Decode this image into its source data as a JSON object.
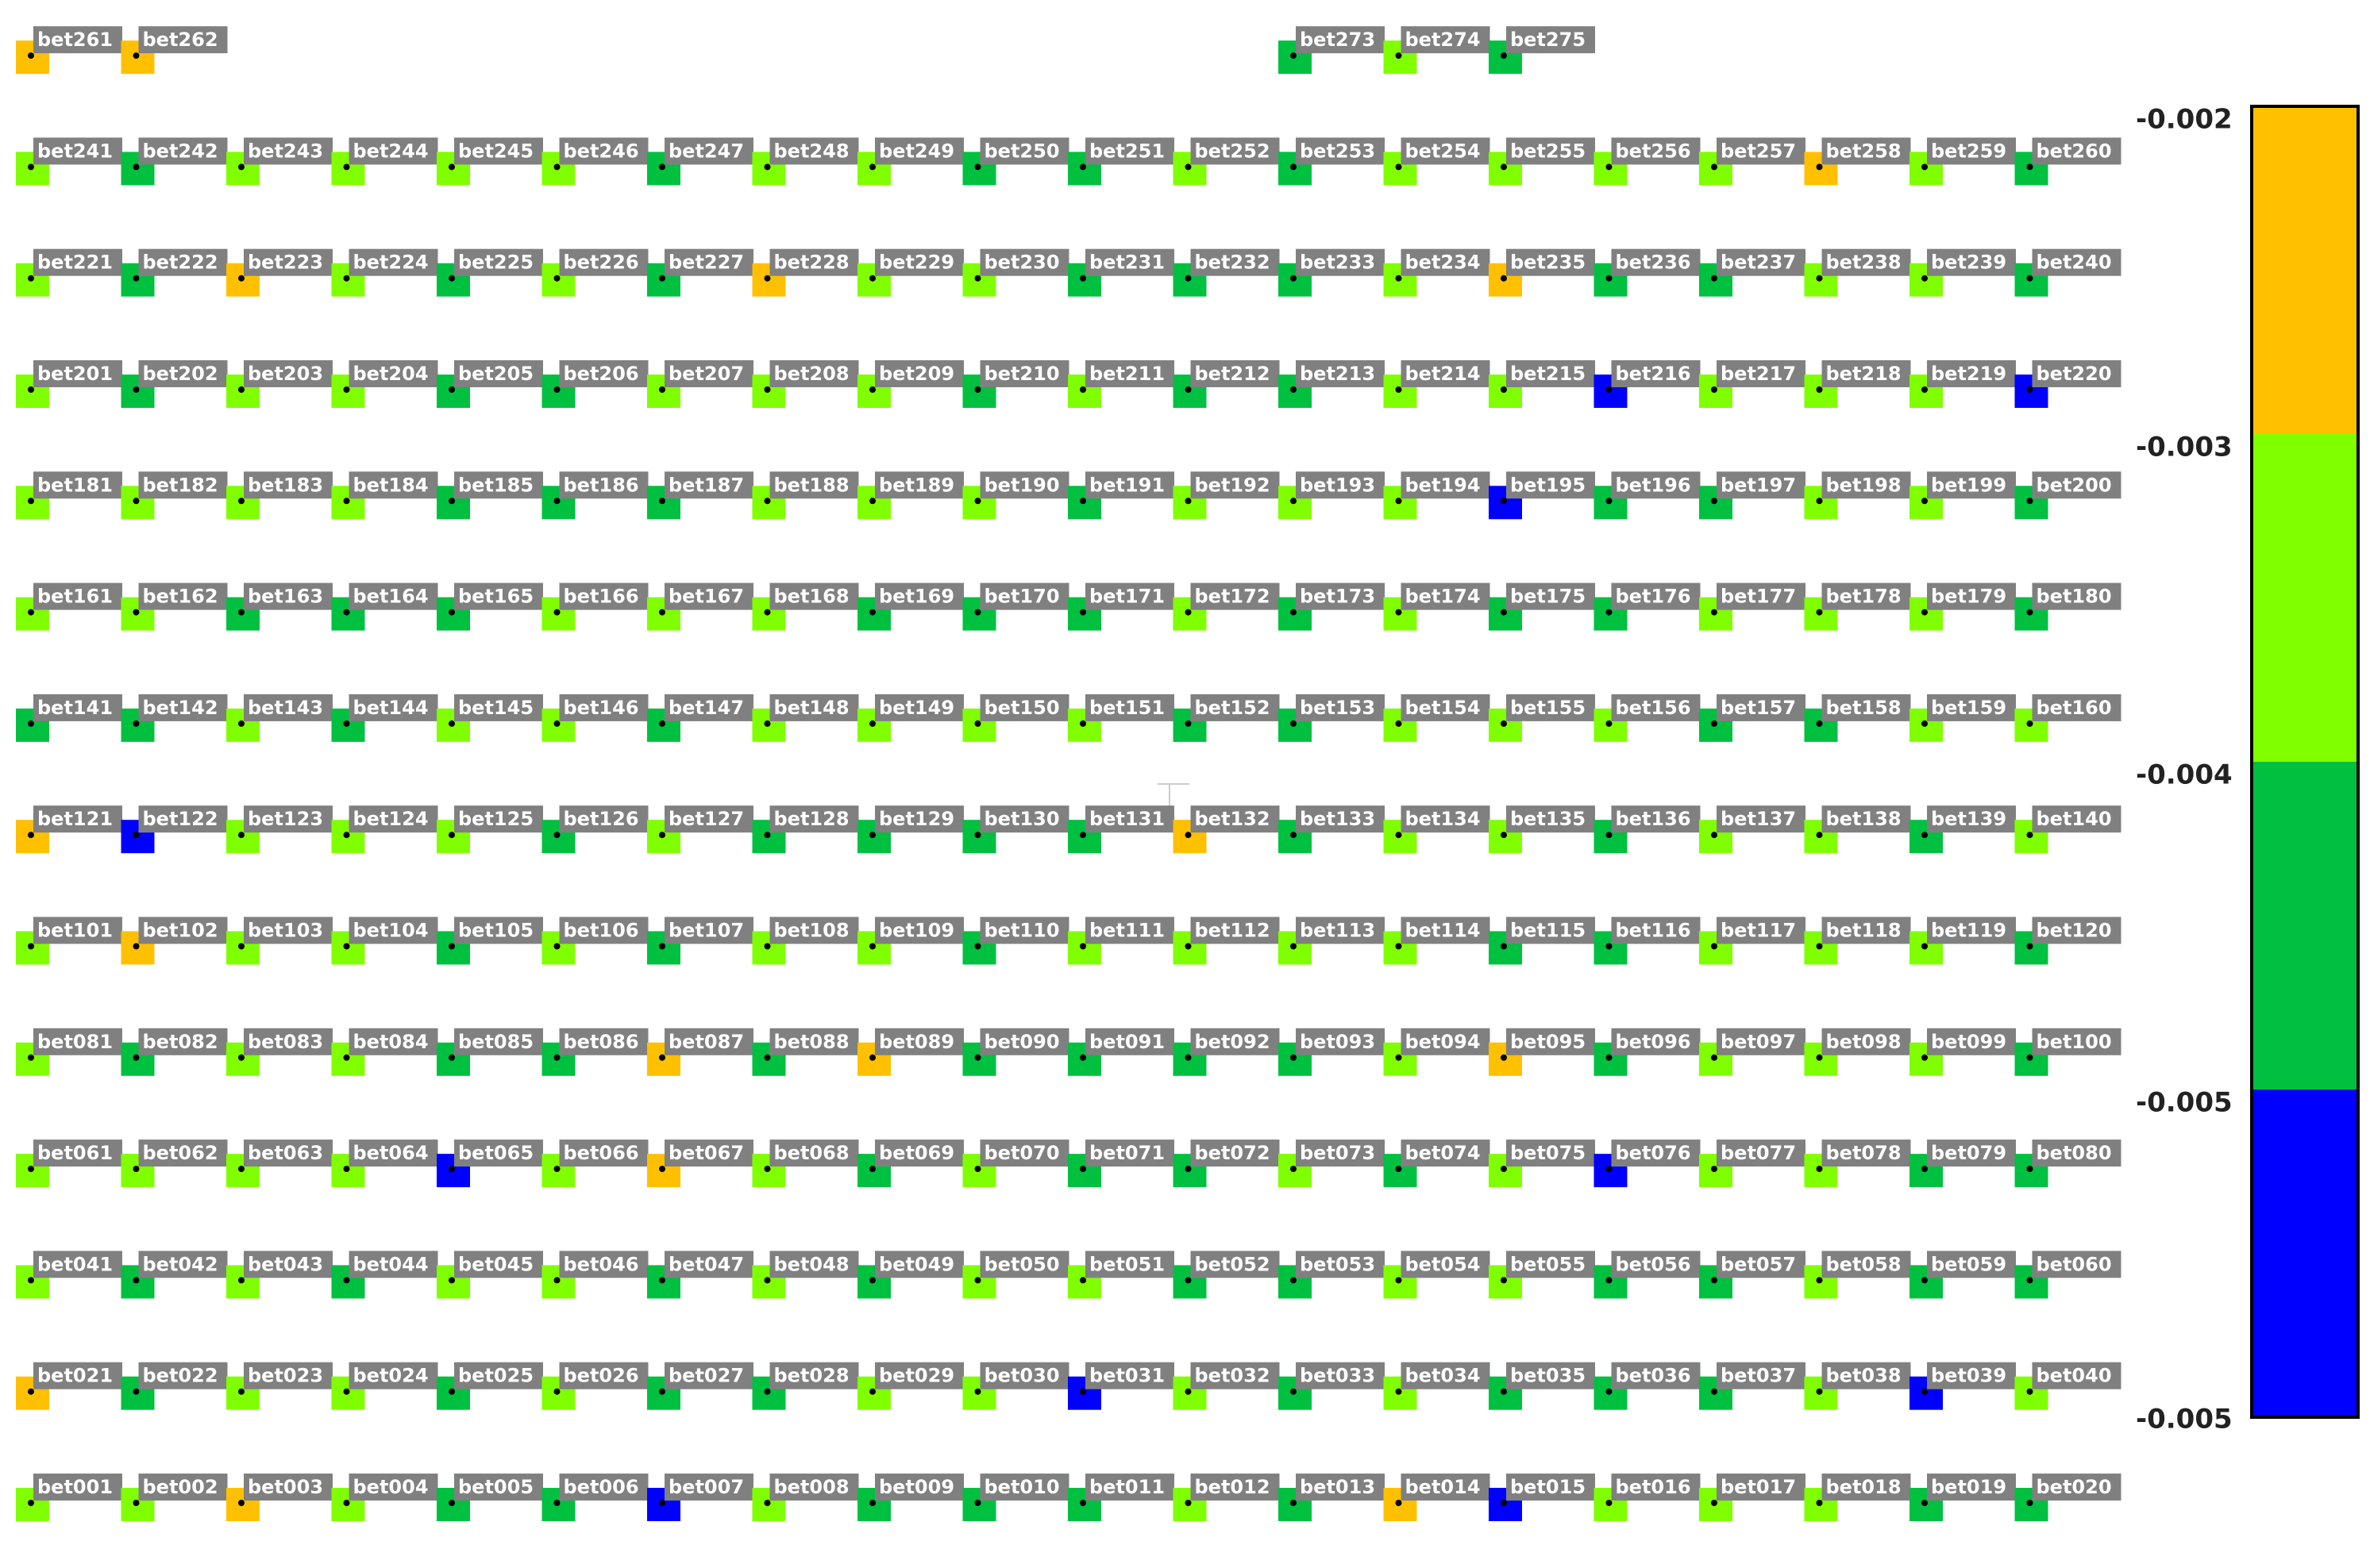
{
  "colorbar": {
    "colors": [
      "#ffc000",
      "#80ff00",
      "#00c040",
      "#0000ff"
    ],
    "labels": [
      "-0.002",
      "-0.003",
      "-0.004",
      "-0.005",
      "-0.005"
    ]
  },
  "rows": [
    [
      {
        "label": "bet001",
        "color": "#80ff00"
      },
      {
        "label": "bet002",
        "color": "#80ff00"
      },
      {
        "label": "bet003",
        "color": "#ffc000"
      },
      {
        "label": "bet004",
        "color": "#80ff00"
      },
      {
        "label": "bet005",
        "color": "#00c040"
      },
      {
        "label": "bet006",
        "color": "#00c040"
      },
      {
        "label": "bet007",
        "color": "#0000ff"
      },
      {
        "label": "bet008",
        "color": "#80ff00"
      },
      {
        "label": "bet009",
        "color": "#00c040"
      },
      {
        "label": "bet010",
        "color": "#00c040"
      },
      {
        "label": "bet011",
        "color": "#00c040"
      },
      {
        "label": "bet012",
        "color": "#80ff00"
      },
      {
        "label": "bet013",
        "color": "#00c040"
      },
      {
        "label": "bet014",
        "color": "#ffc000"
      },
      {
        "label": "bet015",
        "color": "#0000ff"
      },
      {
        "label": "bet016",
        "color": "#80ff00"
      },
      {
        "label": "bet017",
        "color": "#80ff00"
      },
      {
        "label": "bet018",
        "color": "#80ff00"
      },
      {
        "label": "bet019",
        "color": "#00c040"
      },
      {
        "label": "bet020",
        "color": "#00c040"
      }
    ],
    [
      {
        "label": "bet021",
        "color": "#ffc000"
      },
      {
        "label": "bet022",
        "color": "#00c040"
      },
      {
        "label": "bet023",
        "color": "#80ff00"
      },
      {
        "label": "bet024",
        "color": "#80ff00"
      },
      {
        "label": "bet025",
        "color": "#00c040"
      },
      {
        "label": "bet026",
        "color": "#80ff00"
      },
      {
        "label": "bet027",
        "color": "#00c040"
      },
      {
        "label": "bet028",
        "color": "#00c040"
      },
      {
        "label": "bet029",
        "color": "#80ff00"
      },
      {
        "label": "bet030",
        "color": "#80ff00"
      },
      {
        "label": "bet031",
        "color": "#0000ff"
      },
      {
        "label": "bet032",
        "color": "#80ff00"
      },
      {
        "label": "bet033",
        "color": "#00c040"
      },
      {
        "label": "bet034",
        "color": "#80ff00"
      },
      {
        "label": "bet035",
        "color": "#00c040"
      },
      {
        "label": "bet036",
        "color": "#00c040"
      },
      {
        "label": "bet037",
        "color": "#00c040"
      },
      {
        "label": "bet038",
        "color": "#80ff00"
      },
      {
        "label": "bet039",
        "color": "#0000ff"
      },
      {
        "label": "bet040",
        "color": "#80ff00"
      }
    ],
    [
      {
        "label": "bet041",
        "color": "#80ff00"
      },
      {
        "label": "bet042",
        "color": "#00c040"
      },
      {
        "label": "bet043",
        "color": "#80ff00"
      },
      {
        "label": "bet044",
        "color": "#00c040"
      },
      {
        "label": "bet045",
        "color": "#80ff00"
      },
      {
        "label": "bet046",
        "color": "#80ff00"
      },
      {
        "label": "bet047",
        "color": "#00c040"
      },
      {
        "label": "bet048",
        "color": "#80ff00"
      },
      {
        "label": "bet049",
        "color": "#00c040"
      },
      {
        "label": "bet050",
        "color": "#80ff00"
      },
      {
        "label": "bet051",
        "color": "#80ff00"
      },
      {
        "label": "bet052",
        "color": "#00c040"
      },
      {
        "label": "bet053",
        "color": "#00c040"
      },
      {
        "label": "bet054",
        "color": "#80ff00"
      },
      {
        "label": "bet055",
        "color": "#80ff00"
      },
      {
        "label": "bet056",
        "color": "#00c040"
      },
      {
        "label": "bet057",
        "color": "#00c040"
      },
      {
        "label": "bet058",
        "color": "#80ff00"
      },
      {
        "label": "bet059",
        "color": "#00c040"
      },
      {
        "label": "bet060",
        "color": "#00c040"
      }
    ],
    [
      {
        "label": "bet061",
        "color": "#80ff00"
      },
      {
        "label": "bet062",
        "color": "#80ff00"
      },
      {
        "label": "bet063",
        "color": "#80ff00"
      },
      {
        "label": "bet064",
        "color": "#80ff00"
      },
      {
        "label": "bet065",
        "color": "#0000ff"
      },
      {
        "label": "bet066",
        "color": "#80ff00"
      },
      {
        "label": "bet067",
        "color": "#ffc000"
      },
      {
        "label": "bet068",
        "color": "#80ff00"
      },
      {
        "label": "bet069",
        "color": "#00c040"
      },
      {
        "label": "bet070",
        "color": "#80ff00"
      },
      {
        "label": "bet071",
        "color": "#00c040"
      },
      {
        "label": "bet072",
        "color": "#00c040"
      },
      {
        "label": "bet073",
        "color": "#80ff00"
      },
      {
        "label": "bet074",
        "color": "#00c040"
      },
      {
        "label": "bet075",
        "color": "#80ff00"
      },
      {
        "label": "bet076",
        "color": "#0000ff"
      },
      {
        "label": "bet077",
        "color": "#80ff00"
      },
      {
        "label": "bet078",
        "color": "#80ff00"
      },
      {
        "label": "bet079",
        "color": "#00c040"
      },
      {
        "label": "bet080",
        "color": "#00c040"
      }
    ],
    [
      {
        "label": "bet081",
        "color": "#80ff00"
      },
      {
        "label": "bet082",
        "color": "#00c040"
      },
      {
        "label": "bet083",
        "color": "#80ff00"
      },
      {
        "label": "bet084",
        "color": "#80ff00"
      },
      {
        "label": "bet085",
        "color": "#00c040"
      },
      {
        "label": "bet086",
        "color": "#00c040"
      },
      {
        "label": "bet087",
        "color": "#ffc000"
      },
      {
        "label": "bet088",
        "color": "#00c040"
      },
      {
        "label": "bet089",
        "color": "#ffc000"
      },
      {
        "label": "bet090",
        "color": "#00c040"
      },
      {
        "label": "bet091",
        "color": "#00c040"
      },
      {
        "label": "bet092",
        "color": "#00c040"
      },
      {
        "label": "bet093",
        "color": "#00c040"
      },
      {
        "label": "bet094",
        "color": "#80ff00"
      },
      {
        "label": "bet095",
        "color": "#ffc000"
      },
      {
        "label": "bet096",
        "color": "#00c040"
      },
      {
        "label": "bet097",
        "color": "#80ff00"
      },
      {
        "label": "bet098",
        "color": "#80ff00"
      },
      {
        "label": "bet099",
        "color": "#80ff00"
      },
      {
        "label": "bet100",
        "color": "#00c040"
      }
    ],
    [
      {
        "label": "bet101",
        "color": "#80ff00"
      },
      {
        "label": "bet102",
        "color": "#ffc000"
      },
      {
        "label": "bet103",
        "color": "#80ff00"
      },
      {
        "label": "bet104",
        "color": "#80ff00"
      },
      {
        "label": "bet105",
        "color": "#00c040"
      },
      {
        "label": "bet106",
        "color": "#80ff00"
      },
      {
        "label": "bet107",
        "color": "#00c040"
      },
      {
        "label": "bet108",
        "color": "#80ff00"
      },
      {
        "label": "bet109",
        "color": "#80ff00"
      },
      {
        "label": "bet110",
        "color": "#00c040"
      },
      {
        "label": "bet111",
        "color": "#80ff00"
      },
      {
        "label": "bet112",
        "color": "#80ff00"
      },
      {
        "label": "bet113",
        "color": "#80ff00"
      },
      {
        "label": "bet114",
        "color": "#80ff00"
      },
      {
        "label": "bet115",
        "color": "#00c040"
      },
      {
        "label": "bet116",
        "color": "#00c040"
      },
      {
        "label": "bet117",
        "color": "#80ff00"
      },
      {
        "label": "bet118",
        "color": "#80ff00"
      },
      {
        "label": "bet119",
        "color": "#80ff00"
      },
      {
        "label": "bet120",
        "color": "#00c040"
      }
    ],
    [
      {
        "label": "bet121",
        "color": "#ffc000"
      },
      {
        "label": "bet122",
        "color": "#0000ff"
      },
      {
        "label": "bet123",
        "color": "#80ff00"
      },
      {
        "label": "bet124",
        "color": "#80ff00"
      },
      {
        "label": "bet125",
        "color": "#80ff00"
      },
      {
        "label": "bet126",
        "color": "#00c040"
      },
      {
        "label": "bet127",
        "color": "#80ff00"
      },
      {
        "label": "bet128",
        "color": "#00c040"
      },
      {
        "label": "bet129",
        "color": "#00c040"
      },
      {
        "label": "bet130",
        "color": "#00c040"
      },
      {
        "label": "bet131",
        "color": "#00c040"
      },
      {
        "label": "bet132",
        "color": "#ffc000"
      },
      {
        "label": "bet133",
        "color": "#00c040"
      },
      {
        "label": "bet134",
        "color": "#80ff00"
      },
      {
        "label": "bet135",
        "color": "#80ff00"
      },
      {
        "label": "bet136",
        "color": "#00c040"
      },
      {
        "label": "bet137",
        "color": "#80ff00"
      },
      {
        "label": "bet138",
        "color": "#80ff00"
      },
      {
        "label": "bet139",
        "color": "#00c040"
      },
      {
        "label": "bet140",
        "color": "#80ff00"
      }
    ],
    [
      {
        "label": "bet141",
        "color": "#00c040"
      },
      {
        "label": "bet142",
        "color": "#00c040"
      },
      {
        "label": "bet143",
        "color": "#80ff00"
      },
      {
        "label": "bet144",
        "color": "#00c040"
      },
      {
        "label": "bet145",
        "color": "#80ff00"
      },
      {
        "label": "bet146",
        "color": "#80ff00"
      },
      {
        "label": "bet147",
        "color": "#00c040"
      },
      {
        "label": "bet148",
        "color": "#80ff00"
      },
      {
        "label": "bet149",
        "color": "#80ff00"
      },
      {
        "label": "bet150",
        "color": "#80ff00"
      },
      {
        "label": "bet151",
        "color": "#80ff00"
      },
      {
        "label": "bet152",
        "color": "#00c040"
      },
      {
        "label": "bet153",
        "color": "#00c040"
      },
      {
        "label": "bet154",
        "color": "#80ff00"
      },
      {
        "label": "bet155",
        "color": "#80ff00"
      },
      {
        "label": "bet156",
        "color": "#80ff00"
      },
      {
        "label": "bet157",
        "color": "#00c040"
      },
      {
        "label": "bet158",
        "color": "#00c040"
      },
      {
        "label": "bet159",
        "color": "#80ff00"
      },
      {
        "label": "bet160",
        "color": "#80ff00"
      }
    ],
    [
      {
        "label": "bet161",
        "color": "#80ff00"
      },
      {
        "label": "bet162",
        "color": "#80ff00"
      },
      {
        "label": "bet163",
        "color": "#00c040"
      },
      {
        "label": "bet164",
        "color": "#00c040"
      },
      {
        "label": "bet165",
        "color": "#00c040"
      },
      {
        "label": "bet166",
        "color": "#80ff00"
      },
      {
        "label": "bet167",
        "color": "#80ff00"
      },
      {
        "label": "bet168",
        "color": "#80ff00"
      },
      {
        "label": "bet169",
        "color": "#00c040"
      },
      {
        "label": "bet170",
        "color": "#00c040"
      },
      {
        "label": "bet171",
        "color": "#00c040"
      },
      {
        "label": "bet172",
        "color": "#80ff00"
      },
      {
        "label": "bet173",
        "color": "#00c040"
      },
      {
        "label": "bet174",
        "color": "#80ff00"
      },
      {
        "label": "bet175",
        "color": "#00c040"
      },
      {
        "label": "bet176",
        "color": "#00c040"
      },
      {
        "label": "bet177",
        "color": "#80ff00"
      },
      {
        "label": "bet178",
        "color": "#80ff00"
      },
      {
        "label": "bet179",
        "color": "#80ff00"
      },
      {
        "label": "bet180",
        "color": "#00c040"
      }
    ],
    [
      {
        "label": "bet181",
        "color": "#80ff00"
      },
      {
        "label": "bet182",
        "color": "#80ff00"
      },
      {
        "label": "bet183",
        "color": "#80ff00"
      },
      {
        "label": "bet184",
        "color": "#80ff00"
      },
      {
        "label": "bet185",
        "color": "#00c040"
      },
      {
        "label": "bet186",
        "color": "#00c040"
      },
      {
        "label": "bet187",
        "color": "#00c040"
      },
      {
        "label": "bet188",
        "color": "#80ff00"
      },
      {
        "label": "bet189",
        "color": "#80ff00"
      },
      {
        "label": "bet190",
        "color": "#80ff00"
      },
      {
        "label": "bet191",
        "color": "#00c040"
      },
      {
        "label": "bet192",
        "color": "#80ff00"
      },
      {
        "label": "bet193",
        "color": "#80ff00"
      },
      {
        "label": "bet194",
        "color": "#80ff00"
      },
      {
        "label": "bet195",
        "color": "#0000ff"
      },
      {
        "label": "bet196",
        "color": "#00c040"
      },
      {
        "label": "bet197",
        "color": "#00c040"
      },
      {
        "label": "bet198",
        "color": "#80ff00"
      },
      {
        "label": "bet199",
        "color": "#80ff00"
      },
      {
        "label": "bet200",
        "color": "#00c040"
      }
    ],
    [
      {
        "label": "bet201",
        "color": "#80ff00"
      },
      {
        "label": "bet202",
        "color": "#00c040"
      },
      {
        "label": "bet203",
        "color": "#80ff00"
      },
      {
        "label": "bet204",
        "color": "#80ff00"
      },
      {
        "label": "bet205",
        "color": "#00c040"
      },
      {
        "label": "bet206",
        "color": "#00c040"
      },
      {
        "label": "bet207",
        "color": "#80ff00"
      },
      {
        "label": "bet208",
        "color": "#80ff00"
      },
      {
        "label": "bet209",
        "color": "#80ff00"
      },
      {
        "label": "bet210",
        "color": "#00c040"
      },
      {
        "label": "bet211",
        "color": "#80ff00"
      },
      {
        "label": "bet212",
        "color": "#00c040"
      },
      {
        "label": "bet213",
        "color": "#00c040"
      },
      {
        "label": "bet214",
        "color": "#80ff00"
      },
      {
        "label": "bet215",
        "color": "#80ff00"
      },
      {
        "label": "bet216",
        "color": "#0000ff"
      },
      {
        "label": "bet217",
        "color": "#80ff00"
      },
      {
        "label": "bet218",
        "color": "#80ff00"
      },
      {
        "label": "bet219",
        "color": "#80ff00"
      },
      {
        "label": "bet220",
        "color": "#0000ff"
      }
    ],
    [
      {
        "label": "bet221",
        "color": "#80ff00"
      },
      {
        "label": "bet222",
        "color": "#00c040"
      },
      {
        "label": "bet223",
        "color": "#ffc000"
      },
      {
        "label": "bet224",
        "color": "#80ff00"
      },
      {
        "label": "bet225",
        "color": "#00c040"
      },
      {
        "label": "bet226",
        "color": "#80ff00"
      },
      {
        "label": "bet227",
        "color": "#00c040"
      },
      {
        "label": "bet228",
        "color": "#ffc000"
      },
      {
        "label": "bet229",
        "color": "#80ff00"
      },
      {
        "label": "bet230",
        "color": "#80ff00"
      },
      {
        "label": "bet231",
        "color": "#00c040"
      },
      {
        "label": "bet232",
        "color": "#00c040"
      },
      {
        "label": "bet233",
        "color": "#00c040"
      },
      {
        "label": "bet234",
        "color": "#80ff00"
      },
      {
        "label": "bet235",
        "color": "#ffc000"
      },
      {
        "label": "bet236",
        "color": "#00c040"
      },
      {
        "label": "bet237",
        "color": "#00c040"
      },
      {
        "label": "bet238",
        "color": "#80ff00"
      },
      {
        "label": "bet239",
        "color": "#80ff00"
      },
      {
        "label": "bet240",
        "color": "#00c040"
      }
    ],
    [
      {
        "label": "bet241",
        "color": "#80ff00"
      },
      {
        "label": "bet242",
        "color": "#00c040"
      },
      {
        "label": "bet243",
        "color": "#80ff00"
      },
      {
        "label": "bet244",
        "color": "#80ff00"
      },
      {
        "label": "bet245",
        "color": "#80ff00"
      },
      {
        "label": "bet246",
        "color": "#80ff00"
      },
      {
        "label": "bet247",
        "color": "#00c040"
      },
      {
        "label": "bet248",
        "color": "#80ff00"
      },
      {
        "label": "bet249",
        "color": "#80ff00"
      },
      {
        "label": "bet250",
        "color": "#00c040"
      },
      {
        "label": "bet251",
        "color": "#00c040"
      },
      {
        "label": "bet252",
        "color": "#80ff00"
      },
      {
        "label": "bet253",
        "color": "#00c040"
      },
      {
        "label": "bet254",
        "color": "#80ff00"
      },
      {
        "label": "bet255",
        "color": "#80ff00"
      },
      {
        "label": "bet256",
        "color": "#80ff00"
      },
      {
        "label": "bet257",
        "color": "#80ff00"
      },
      {
        "label": "bet258",
        "color": "#ffc000"
      },
      {
        "label": "bet259",
        "color": "#80ff00"
      },
      {
        "label": "bet260",
        "color": "#00c040"
      }
    ]
  ],
  "top_left": [
    {
      "label": "bet261",
      "color": "#ffc000"
    },
    {
      "label": "bet262",
      "color": "#ffc000"
    }
  ],
  "top_right": [
    {
      "label": "bet273",
      "color": "#00c040"
    },
    {
      "label": "bet274",
      "color": "#80ff00"
    },
    {
      "label": "bet275",
      "color": "#00c040"
    }
  ]
}
